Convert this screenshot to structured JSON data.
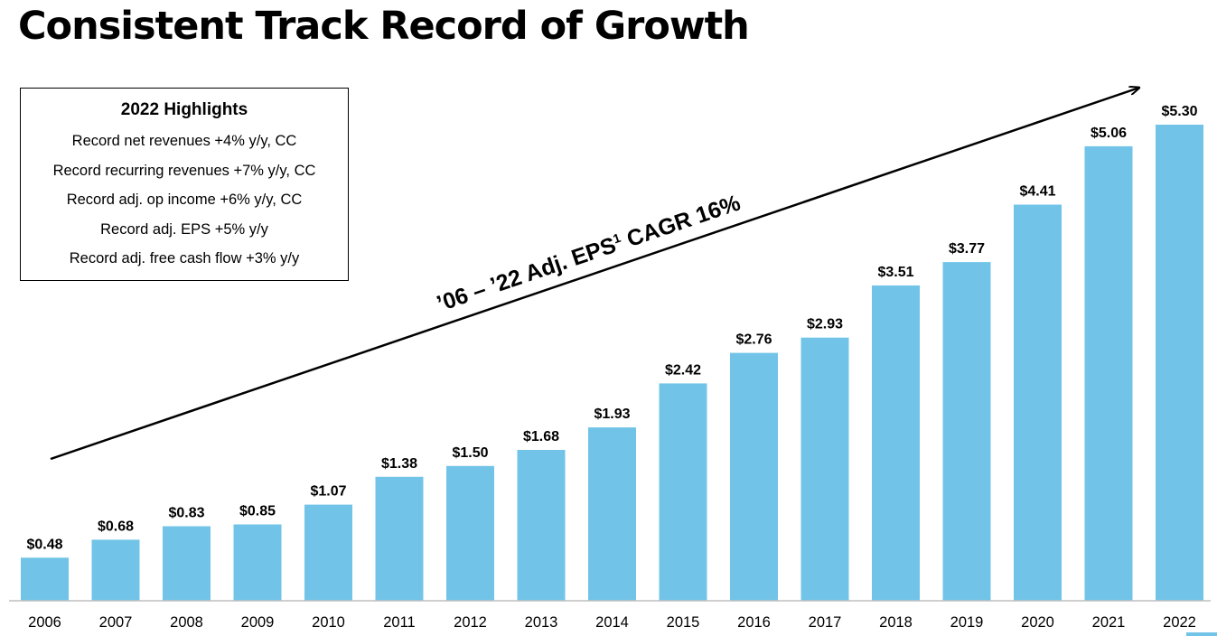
{
  "title": "Consistent Track Record of Growth",
  "highlights": {
    "heading": "2022 Highlights",
    "items": [
      "Record net revenues +4% y/y, CC",
      "Record recurring revenues +7% y/y, CC",
      "Record adj. op income +6% y/y, CC",
      "Record adj. EPS +5% y/y",
      "Record adj. free cash flow +3% y/y"
    ]
  },
  "annotation": {
    "main": "’06 – ’22 Adj. EPS",
    "superscript": "1",
    "suffix": " CAGR 16%"
  },
  "chart_data": {
    "type": "bar",
    "categories": [
      "2006",
      "2007",
      "2008",
      "2009",
      "2010",
      "2011",
      "2012",
      "2013",
      "2014",
      "2015",
      "2016",
      "2017",
      "2018",
      "2019",
      "2020",
      "2021",
      "2022"
    ],
    "values": [
      0.48,
      0.68,
      0.83,
      0.85,
      1.07,
      1.38,
      1.5,
      1.68,
      1.93,
      2.42,
      2.76,
      2.93,
      3.51,
      3.77,
      4.41,
      5.06,
      5.3
    ],
    "data_labels": [
      "$0.48",
      "$0.68",
      "$0.83",
      "$0.85",
      "$1.07",
      "$1.38",
      "$1.50",
      "$1.68",
      "$1.93",
      "$2.42",
      "$2.76",
      "$2.93",
      "$3.51",
      "$3.77",
      "$4.41",
      "$5.06",
      "$5.30"
    ],
    "title": "",
    "xlabel": "",
    "ylabel": "",
    "ylim": [
      0,
      5.3
    ],
    "grid": false,
    "legend": "none",
    "bar_color": "#71c4e8",
    "axis_color": "#bfbfbf"
  }
}
